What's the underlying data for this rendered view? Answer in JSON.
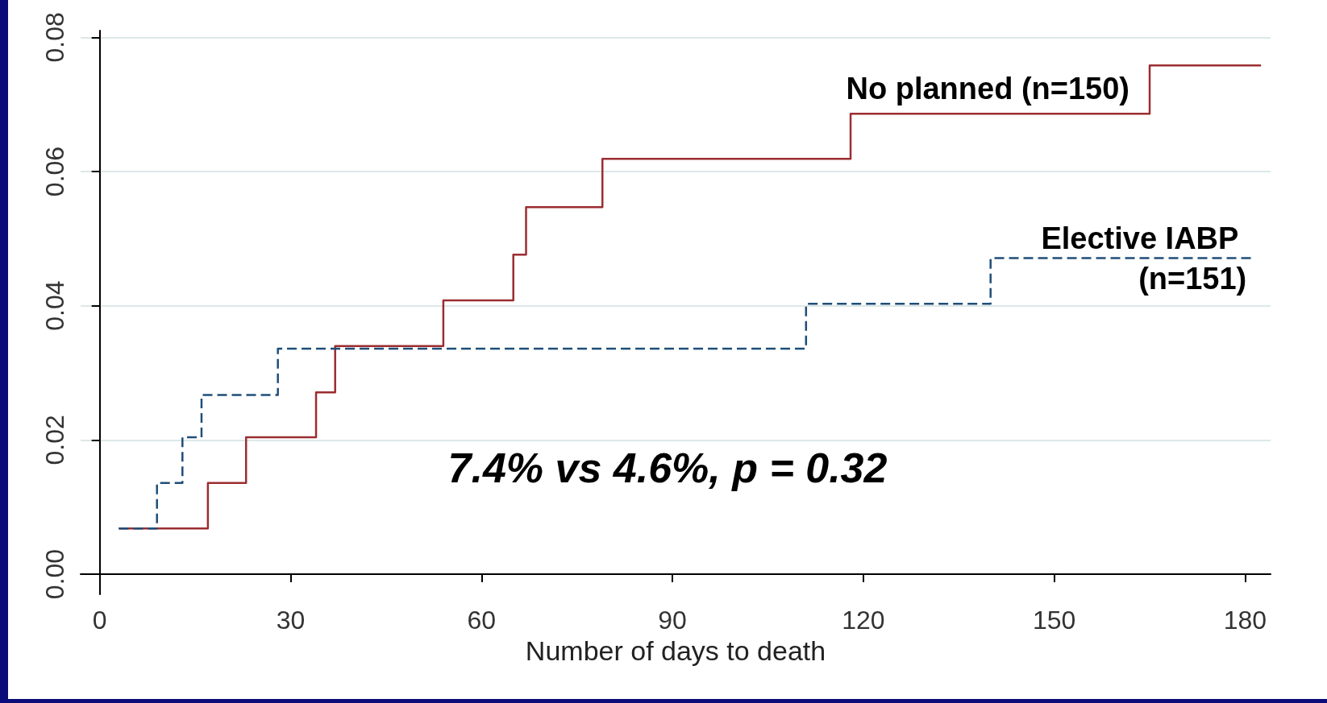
{
  "chart_data": {
    "type": "step",
    "xlabel": "Number of days to death",
    "xlim": [
      -3,
      184
    ],
    "xticks": [
      0,
      30,
      60,
      90,
      120,
      150,
      180
    ],
    "ylim": [
      -0.003,
      0.081
    ],
    "yticks": [
      {
        "value": 0,
        "label": "0.00"
      },
      {
        "value": 0.02,
        "label": "0.02"
      },
      {
        "value": 0.04,
        "label": "0.04"
      },
      {
        "value": 0.06,
        "label": "0.06"
      },
      {
        "value": 0.08,
        "label": "0.08"
      }
    ],
    "grid": "y",
    "legend": false,
    "marker": "none",
    "series": [
      {
        "name": "No planned (n=150)",
        "color": "#9b2d30",
        "line_style": "solid",
        "x": [
          3,
          17,
          23,
          34,
          37,
          54,
          65,
          67,
          79,
          118,
          165,
          182.5
        ],
        "values": [
          0.0068,
          0.0136,
          0.0204,
          0.0271,
          0.034,
          0.0408,
          0.0476,
          0.0547,
          0.0619,
          0.0686,
          0.0758,
          0.0758
        ]
      },
      {
        "name": "Elective IABP (n=151)",
        "color": "#1f4e79",
        "line_style": "dashed",
        "x": [
          3,
          9,
          13,
          16,
          28,
          111,
          140,
          181.5
        ],
        "values": [
          0.0068,
          0.0136,
          0.0204,
          0.0267,
          0.0336,
          0.0403,
          0.0471,
          0.0471
        ]
      }
    ],
    "annotations": [
      "7.4% vs 4.6%, p = 0.32"
    ]
  }
}
